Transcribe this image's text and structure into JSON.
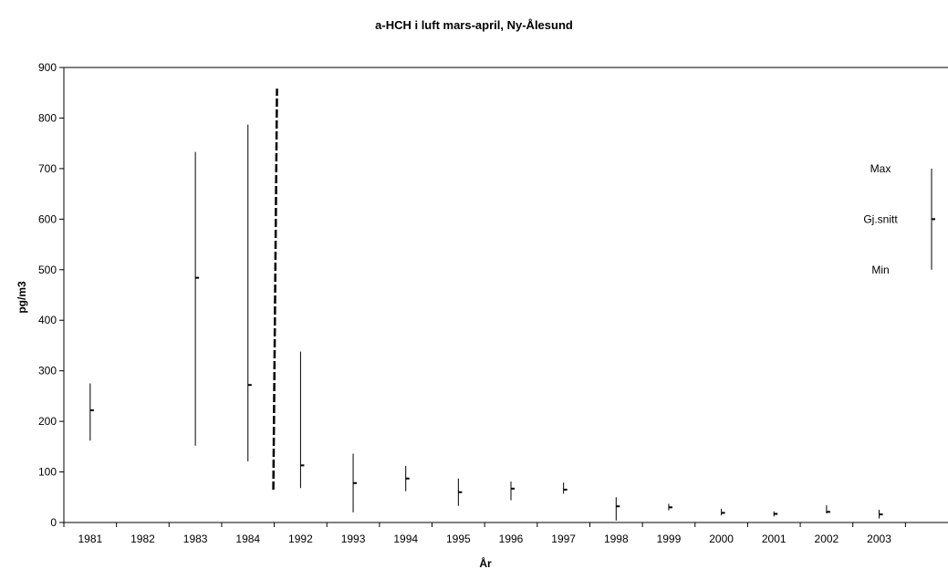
{
  "chart_data": {
    "type": "high-low-average",
    "title": "a-HCH i luft mars-april, Ny-Ålesund",
    "xlabel": "År",
    "ylabel": "pg/m3",
    "ylim": [
      0,
      900
    ],
    "yticks": [
      0,
      100,
      200,
      300,
      400,
      500,
      600,
      700,
      800,
      900
    ],
    "categories": [
      "1981",
      "1982",
      "1983",
      "1984",
      "1992",
      "1993",
      "1994",
      "1995",
      "1996",
      "1997",
      "1998",
      "1999",
      "2000",
      "2001",
      "2002",
      "2003"
    ],
    "series": [
      {
        "name": "Max",
        "values": [
          275,
          null,
          733,
          787,
          338,
          136,
          112,
          87,
          81,
          79,
          50,
          37,
          27,
          22,
          34,
          25
        ]
      },
      {
        "name": "Gj.snitt",
        "values": [
          222,
          null,
          484,
          272,
          113,
          78,
          87,
          60,
          67,
          65,
          32,
          30,
          19,
          17,
          21,
          16
        ]
      },
      {
        "name": "Min",
        "values": [
          162,
          null,
          152,
          121,
          68,
          20,
          62,
          33,
          44,
          57,
          4,
          24,
          14,
          12,
          18,
          8
        ]
      }
    ],
    "grid": false,
    "legend_position": "right",
    "legend_example": {
      "max": 700,
      "mean": 600,
      "min": 500
    },
    "dashed_break_line": {
      "from": 65,
      "to": 858
    }
  }
}
